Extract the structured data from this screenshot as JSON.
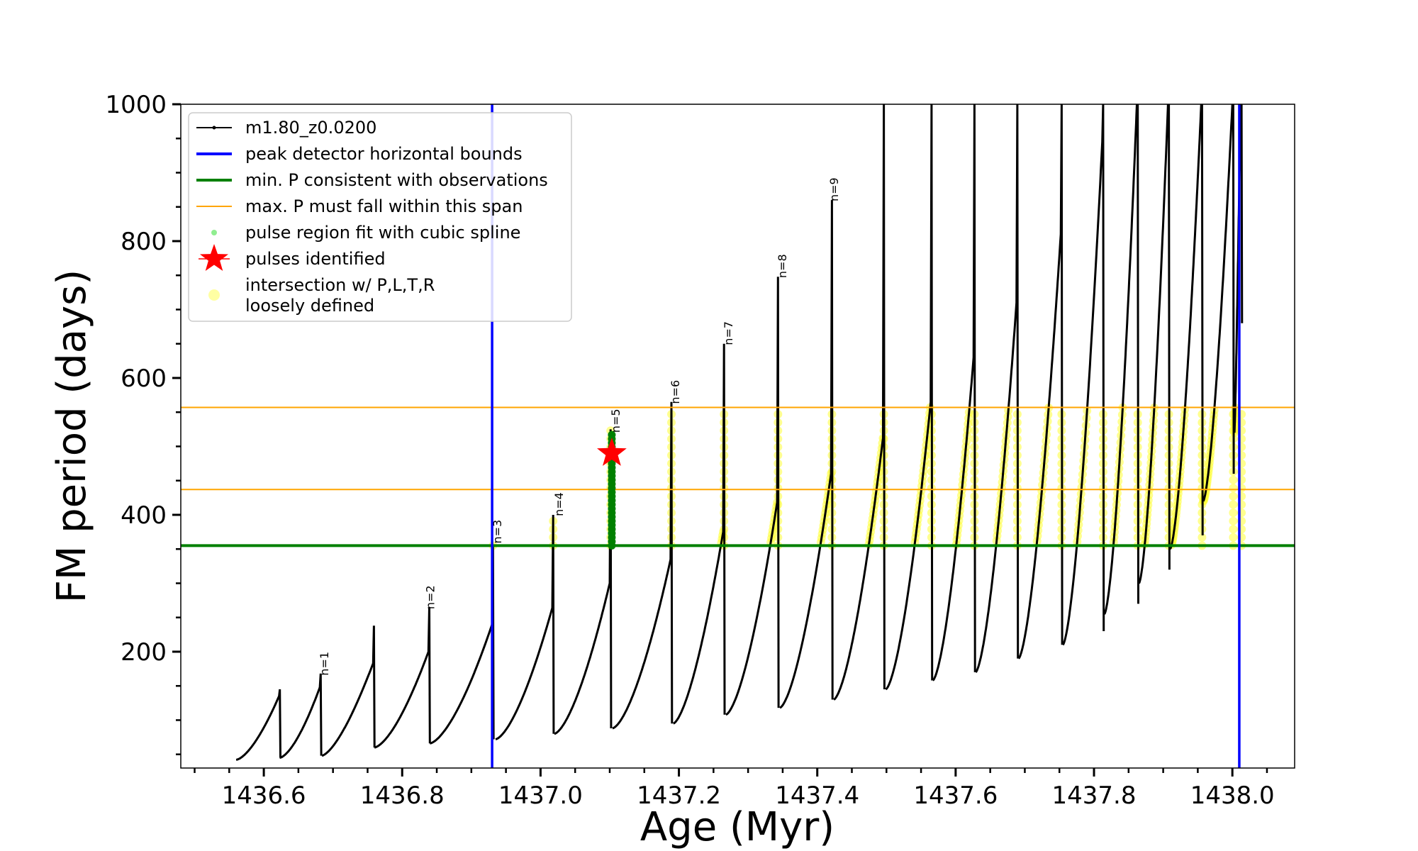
{
  "chart_data": {
    "type": "line",
    "title": "",
    "xlabel": "Age (Myr)",
    "ylabel": "FM period (days)",
    "xlim": [
      1436.48,
      1438.09
    ],
    "ylim": [
      30,
      1000
    ],
    "xticks": [
      {
        "value": 1436.6,
        "label": "1436.6"
      },
      {
        "value": 1436.8,
        "label": "1436.8"
      },
      {
        "value": 1437.0,
        "label": "1437.0"
      },
      {
        "value": 1437.2,
        "label": "1437.2"
      },
      {
        "value": 1437.4,
        "label": "1437.4"
      },
      {
        "value": 1437.6,
        "label": "1437.6"
      },
      {
        "value": 1437.8,
        "label": "1437.8"
      },
      {
        "value": 1438.0,
        "label": "1438.0"
      }
    ],
    "yticks": [
      {
        "value": 200,
        "label": "200"
      },
      {
        "value": 400,
        "label": "400"
      },
      {
        "value": 600,
        "label": "600"
      },
      {
        "value": 800,
        "label": "800"
      },
      {
        "value": 1000,
        "label": "1000"
      }
    ],
    "grid": false,
    "legend_position": "top-left",
    "legend": [
      {
        "label": "m1.80_z0.0200",
        "style": "line-dot",
        "color": "#000000"
      },
      {
        "label": "peak detector horizontal bounds",
        "style": "line",
        "color": "#0000ff"
      },
      {
        "label": "min. P consistent with observations",
        "style": "line",
        "color": "#008000"
      },
      {
        "label": "max. P must fall within this span",
        "style": "thin-line",
        "color": "#ffa500"
      },
      {
        "label": "pulse region fit with cubic spline",
        "style": "dot",
        "color": "#90ee90"
      },
      {
        "label": "pulses identified",
        "style": "star",
        "color": "#ff0000"
      },
      {
        "label": "intersection w/ P,L,T,R",
        "label2": "loosely defined",
        "style": "circle",
        "color": "#ffff66"
      }
    ],
    "peak_detector_bounds": [
      1436.93,
      1438.01
    ],
    "min_period": 355,
    "max_period_span": [
      437,
      557
    ],
    "series_name": "m1.80_z0.0200",
    "pulse_labels": [
      {
        "label": "n=1",
        "x": 1436.683,
        "y": 165
      },
      {
        "label": "n=2",
        "x": 1436.836,
        "y": 262
      },
      {
        "label": "n=3",
        "x": 1436.933,
        "y": 358
      },
      {
        "label": "n=4",
        "x": 1437.022,
        "y": 398
      },
      {
        "label": "n=5",
        "x": 1437.104,
        "y": 520
      },
      {
        "label": "n=6",
        "x": 1437.19,
        "y": 562
      },
      {
        "label": "n=7",
        "x": 1437.267,
        "y": 648
      },
      {
        "label": "n=8",
        "x": 1437.345,
        "y": 746
      },
      {
        "label": "n=9",
        "x": 1437.42,
        "y": 858
      }
    ],
    "pulses_identified": [
      {
        "x": 1437.103,
        "y": 490
      }
    ],
    "pulses": [
      {
        "start": 1436.56,
        "peak": 1436.622,
        "low_start": 42,
        "low_end": 45,
        "peak_val": 135,
        "spike": 145
      },
      {
        "start": 1436.623,
        "peak": 1436.681,
        "low_start": 45,
        "low_end": 48,
        "peak_val": 148,
        "spike": 168
      },
      {
        "start": 1436.684,
        "peak": 1436.758,
        "low_start": 48,
        "low_end": 60,
        "peak_val": 183,
        "spike": 238
      },
      {
        "start": 1436.76,
        "peak": 1436.838,
        "low_start": 60,
        "low_end": 66,
        "peak_val": 200,
        "spike": 265
      },
      {
        "start": 1436.84,
        "peak": 1436.93,
        "low_start": 66,
        "low_end": 72,
        "peak_val": 240,
        "spike": 355
      },
      {
        "start": 1436.935,
        "peak": 1437.017,
        "low_start": 72,
        "low_end": 80,
        "peak_val": 264,
        "spike": 400
      },
      {
        "start": 1437.02,
        "peak": 1437.1,
        "low_start": 80,
        "low_end": 88,
        "peak_val": 300,
        "spike": 525
      },
      {
        "start": 1437.104,
        "peak": 1437.188,
        "low_start": 88,
        "low_end": 95,
        "peak_val": 335,
        "spike": 565
      },
      {
        "start": 1437.192,
        "peak": 1437.264,
        "low_start": 95,
        "low_end": 108,
        "peak_val": 375,
        "spike": 650
      },
      {
        "start": 1437.268,
        "peak": 1437.342,
        "low_start": 108,
        "low_end": 118,
        "peak_val": 418,
        "spike": 748
      },
      {
        "start": 1437.346,
        "peak": 1437.42,
        "low_start": 118,
        "low_end": 130,
        "peak_val": 460,
        "spike": 860
      },
      {
        "start": 1437.424,
        "peak": 1437.495,
        "low_start": 130,
        "low_end": 145,
        "peak_val": 512,
        "spike": 1000
      },
      {
        "start": 1437.499,
        "peak": 1437.564,
        "low_start": 145,
        "low_end": 158,
        "peak_val": 565,
        "spike": 1000
      },
      {
        "start": 1437.567,
        "peak": 1437.626,
        "low_start": 158,
        "low_end": 170,
        "peak_val": 630,
        "spike": 1000
      },
      {
        "start": 1437.629,
        "peak": 1437.688,
        "low_start": 170,
        "low_end": 190,
        "peak_val": 710,
        "spike": 1000
      },
      {
        "start": 1437.691,
        "peak": 1437.752,
        "low_start": 190,
        "low_end": 210,
        "peak_val": 810,
        "spike": 1000
      },
      {
        "start": 1437.755,
        "peak": 1437.812,
        "low_start": 210,
        "low_end": 230,
        "peak_val": 945,
        "spike": 1000
      },
      {
        "start": 1437.815,
        "peak": 1437.862,
        "low_start": 255,
        "low_end": 270,
        "peak_val": 1000,
        "spike": 1000
      },
      {
        "start": 1437.865,
        "peak": 1437.907,
        "low_start": 300,
        "low_end": 320,
        "peak_val": 1000,
        "spike": 1000
      },
      {
        "start": 1437.91,
        "peak": 1437.955,
        "low_start": 350,
        "low_end": 370,
        "peak_val": 1000,
        "spike": 1000
      },
      {
        "start": 1437.958,
        "peak": 1438.0,
        "low_start": 420,
        "low_end": 460,
        "peak_val": 1000,
        "spike": 1000
      },
      {
        "start": 1438.003,
        "peak": 1438.012,
        "low_start": 520,
        "low_end": 680,
        "peak_val": 1000,
        "spike": 1000
      }
    ]
  }
}
